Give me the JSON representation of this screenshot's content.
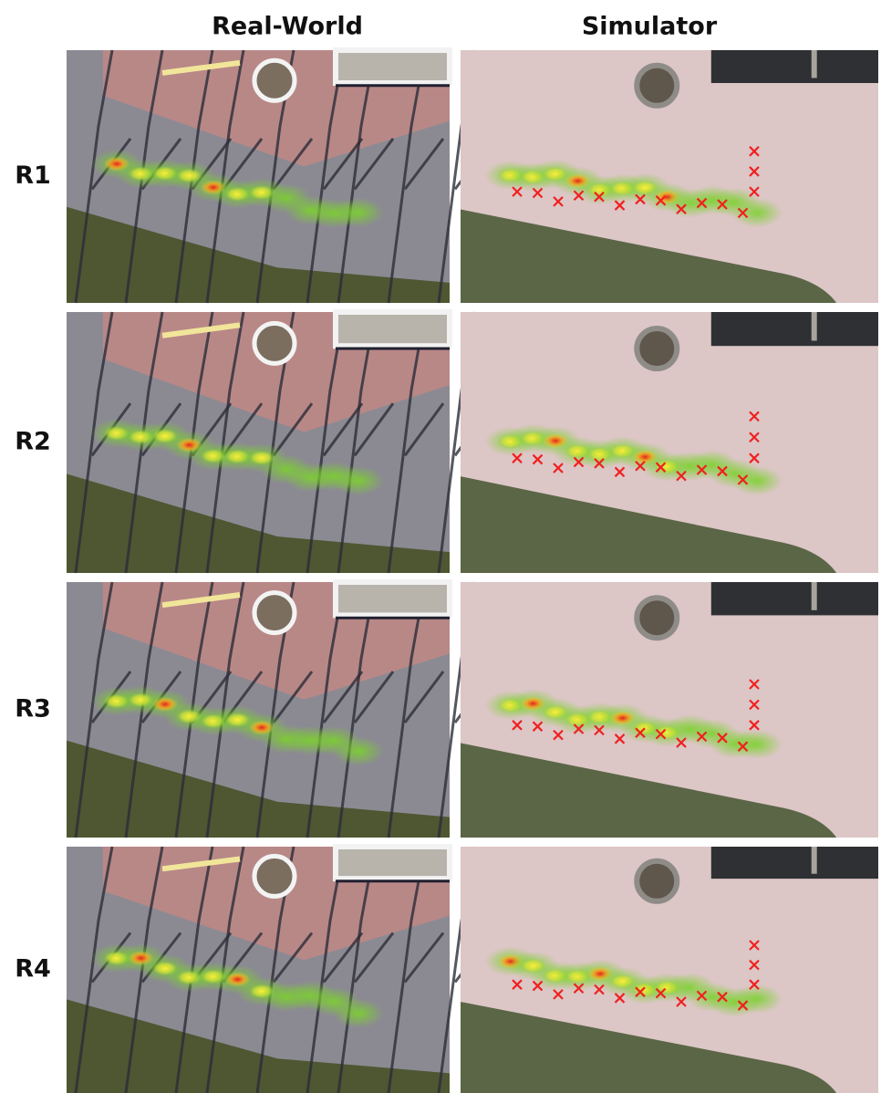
{
  "header": {
    "columns": [
      "Real-World",
      "Simulator"
    ]
  },
  "rows": [
    {
      "label": "R1"
    },
    {
      "label": "R2"
    },
    {
      "label": "R3"
    },
    {
      "label": "R4"
    }
  ]
}
